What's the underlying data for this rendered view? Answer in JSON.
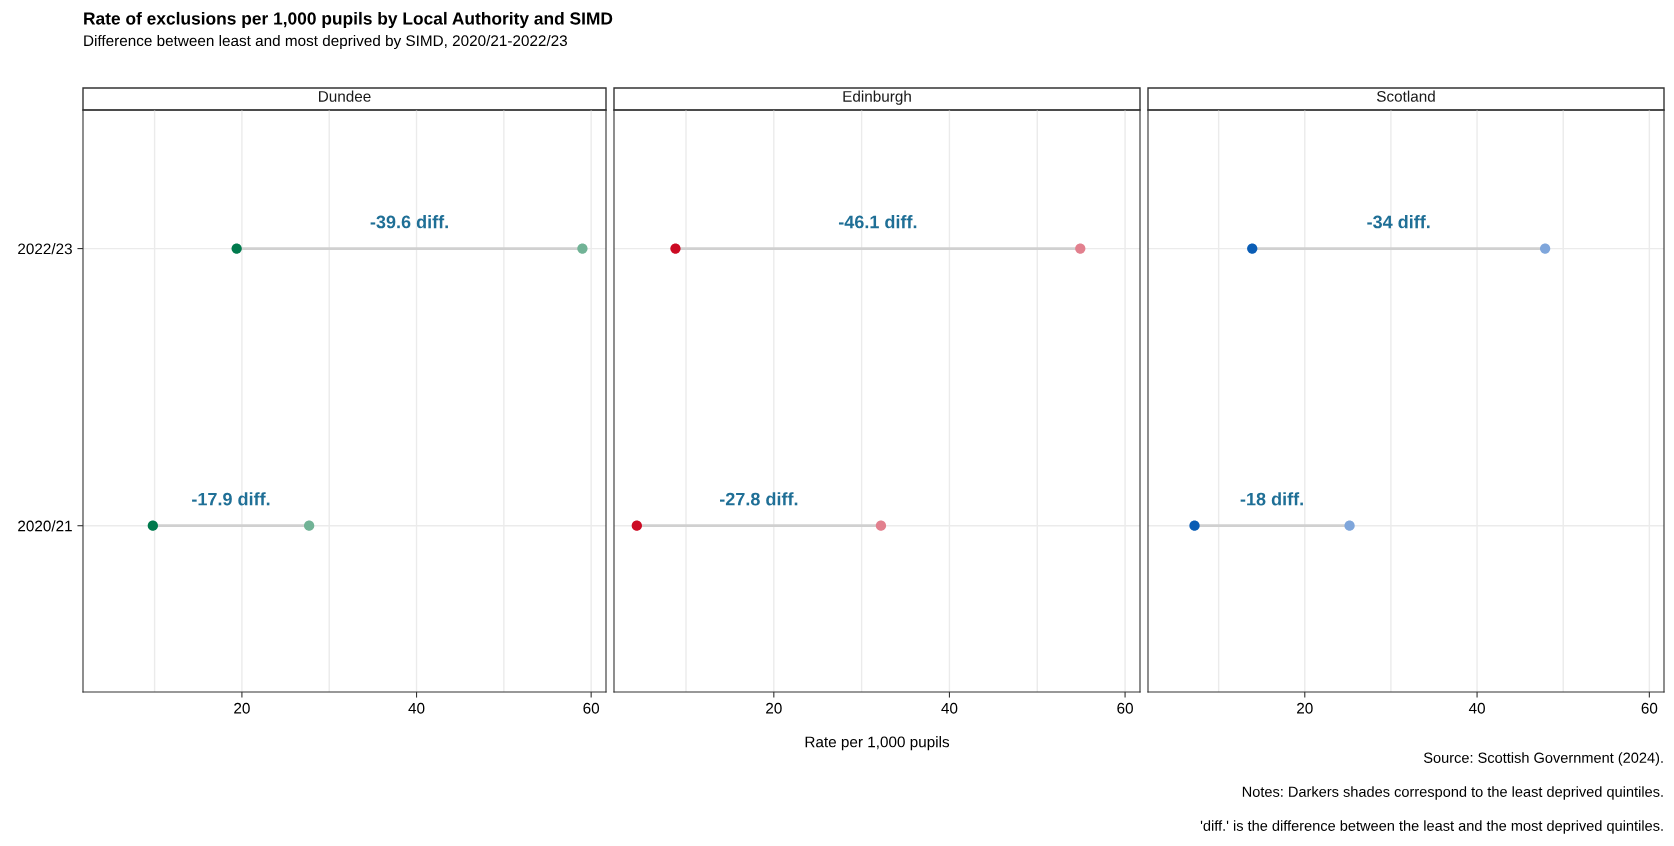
{
  "chart_data": [
    {
      "type": "other",
      "title": "Rate of exclusions per 1,000 pupils by Local Authority and SIMD",
      "subtitle": "Difference between least and most deprived by SIMD, 2020/21-2022/23",
      "annotations": [
        "Source: Scottish Government (2024).",
        "Notes: Darkers shades correspond to the least deprived quintiles.",
        "'diff.' is the difference between the least and the most deprived quintiles."
      ]
    },
    {
      "type": "scatter",
      "orientation": "horizontal",
      "title": "Dundee",
      "categories": [
        "2022/23",
        "2020/21"
      ],
      "series": [
        {
          "color": "#007a4d",
          "values": [
            19.4,
            9.8
          ]
        },
        {
          "color": "#71b396",
          "values": [
            59.0,
            27.7
          ]
        }
      ],
      "xlim": [
        1.8,
        61.7
      ],
      "xticks": [
        {
          "value": 10,
          "label": null
        },
        20,
        {
          "value": 30,
          "label": null
        },
        40,
        {
          "value": 50,
          "label": null
        },
        60
      ],
      "grid": true,
      "marker": "circle",
      "annotations": [
        "-39.6 diff.",
        "-17.9 diff."
      ]
    },
    {
      "type": "scatter",
      "orientation": "horizontal",
      "title": "Edinburgh",
      "categories": [
        "2022/23",
        "2020/21"
      ],
      "xlabel": "Rate per 1,000 pupils",
      "series": [
        {
          "color": "#cc0a23",
          "values": [
            8.8,
            4.4
          ]
        },
        {
          "color": "#e2808e",
          "values": [
            54.9,
            32.2
          ]
        }
      ],
      "xlim": [
        1.8,
        61.7
      ],
      "xticks": [
        {
          "value": 10,
          "label": null
        },
        20,
        {
          "value": 30,
          "label": null
        },
        40,
        {
          "value": 50,
          "label": null
        },
        60
      ],
      "grid": true,
      "marker": "circle",
      "tick_labels": "x",
      "annotations": [
        "-46.1 diff.",
        "-27.8 diff."
      ]
    },
    {
      "type": "scatter",
      "orientation": "horizontal",
      "title": "Scotland",
      "categories": [
        "2022/23",
        "2020/21"
      ],
      "series": [
        {
          "color": "#0a5db5",
          "values": [
            13.9,
            7.2
          ]
        },
        {
          "color": "#7fa6db",
          "values": [
            47.9,
            25.2
          ]
        }
      ],
      "xlim": [
        1.8,
        61.7
      ],
      "xticks": [
        {
          "value": 10,
          "label": null
        },
        20,
        {
          "value": 30,
          "label": null
        },
        40,
        {
          "value": 50,
          "label": null
        },
        60
      ],
      "grid": true,
      "marker": "circle",
      "tick_labels": "x",
      "annotations": [
        "-34 diff.",
        "-18 diff."
      ]
    }
  ]
}
